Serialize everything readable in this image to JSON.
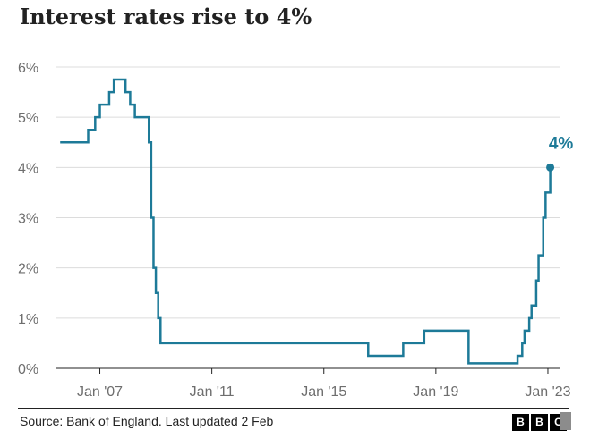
{
  "title": "Interest rates rise to 4%",
  "source": "Source: Bank of England. Last updated 2 Feb",
  "logo_letters": [
    "B",
    "B",
    "C"
  ],
  "colors": {
    "line": "#1d7a98",
    "grid": "#dcdcdc",
    "axis": "#222222",
    "tick_text": "#6e6e6e",
    "annotation": "#1d7a98"
  },
  "chart_data": {
    "type": "line",
    "title": "Interest rates rise to 4%",
    "xlabel": "",
    "ylabel": "",
    "y_unit": "%",
    "ylim": [
      0,
      6
    ],
    "xlim": [
      "2005-06",
      "2023-06"
    ],
    "y_ticks": [
      0,
      1,
      2,
      3,
      4,
      5,
      6
    ],
    "y_tick_labels": [
      "0%",
      "1%",
      "2%",
      "3%",
      "4%",
      "5%",
      "6%"
    ],
    "x_ticks": [
      "2007-01",
      "2011-01",
      "2015-01",
      "2019-01",
      "2023-01"
    ],
    "x_tick_labels": [
      "Jan '07",
      "Jan '11",
      "Jan '15",
      "Jan '19",
      "Jan '23"
    ],
    "grid": "horizontal",
    "step": true,
    "annotation": {
      "date": "2023-02",
      "value": 4,
      "label": "4%"
    },
    "series": [
      {
        "points": [
          [
            "2005-08",
            4.5
          ],
          [
            "2006-08",
            4.75
          ],
          [
            "2006-11",
            5.0
          ],
          [
            "2007-01",
            5.25
          ],
          [
            "2007-05",
            5.5
          ],
          [
            "2007-07",
            5.75
          ],
          [
            "2007-12",
            5.5
          ],
          [
            "2008-02",
            5.25
          ],
          [
            "2008-04",
            5.0
          ],
          [
            "2008-10",
            4.5
          ],
          [
            "2008-11",
            3.0
          ],
          [
            "2008-12",
            2.0
          ],
          [
            "2009-01",
            1.5
          ],
          [
            "2009-02",
            1.0
          ],
          [
            "2009-03",
            0.5
          ],
          [
            "2016-08",
            0.25
          ],
          [
            "2017-11",
            0.5
          ],
          [
            "2018-08",
            0.75
          ],
          [
            "2020-03",
            0.1
          ],
          [
            "2021-12",
            0.25
          ],
          [
            "2022-02",
            0.5
          ],
          [
            "2022-03",
            0.75
          ],
          [
            "2022-05",
            1.0
          ],
          [
            "2022-06",
            1.25
          ],
          [
            "2022-08",
            1.75
          ],
          [
            "2022-09",
            2.25
          ],
          [
            "2022-11",
            3.0
          ],
          [
            "2022-12",
            3.5
          ],
          [
            "2023-02",
            4.0
          ]
        ]
      }
    ]
  }
}
